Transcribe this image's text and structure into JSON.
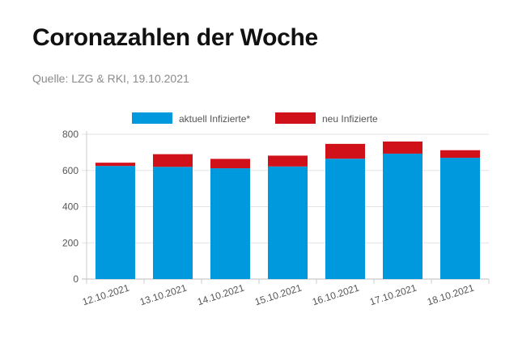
{
  "title": "Coronazahlen der Woche",
  "source": "Quelle: LZG & RKI, 19.10.2021",
  "chart_data": {
    "type": "bar",
    "stacked": true,
    "categories": [
      "12.10.2021",
      "13.10.2021",
      "14.10.2021",
      "15.10.2021",
      "16.10.2021",
      "17.10.2021",
      "18.10.2021"
    ],
    "series": [
      {
        "name": "aktuell Infizierte*",
        "color": "#0099dd",
        "values": [
          625,
          620,
          612,
          622,
          665,
          693,
          670
        ]
      },
      {
        "name": "neu Infizierte",
        "color": "#d0111a",
        "values": [
          18,
          70,
          52,
          60,
          82,
          67,
          42
        ]
      }
    ],
    "ylim": [
      0,
      800
    ],
    "yticks": [
      0,
      200,
      400,
      600,
      800
    ],
    "grid": true,
    "legend_position": "top"
  }
}
